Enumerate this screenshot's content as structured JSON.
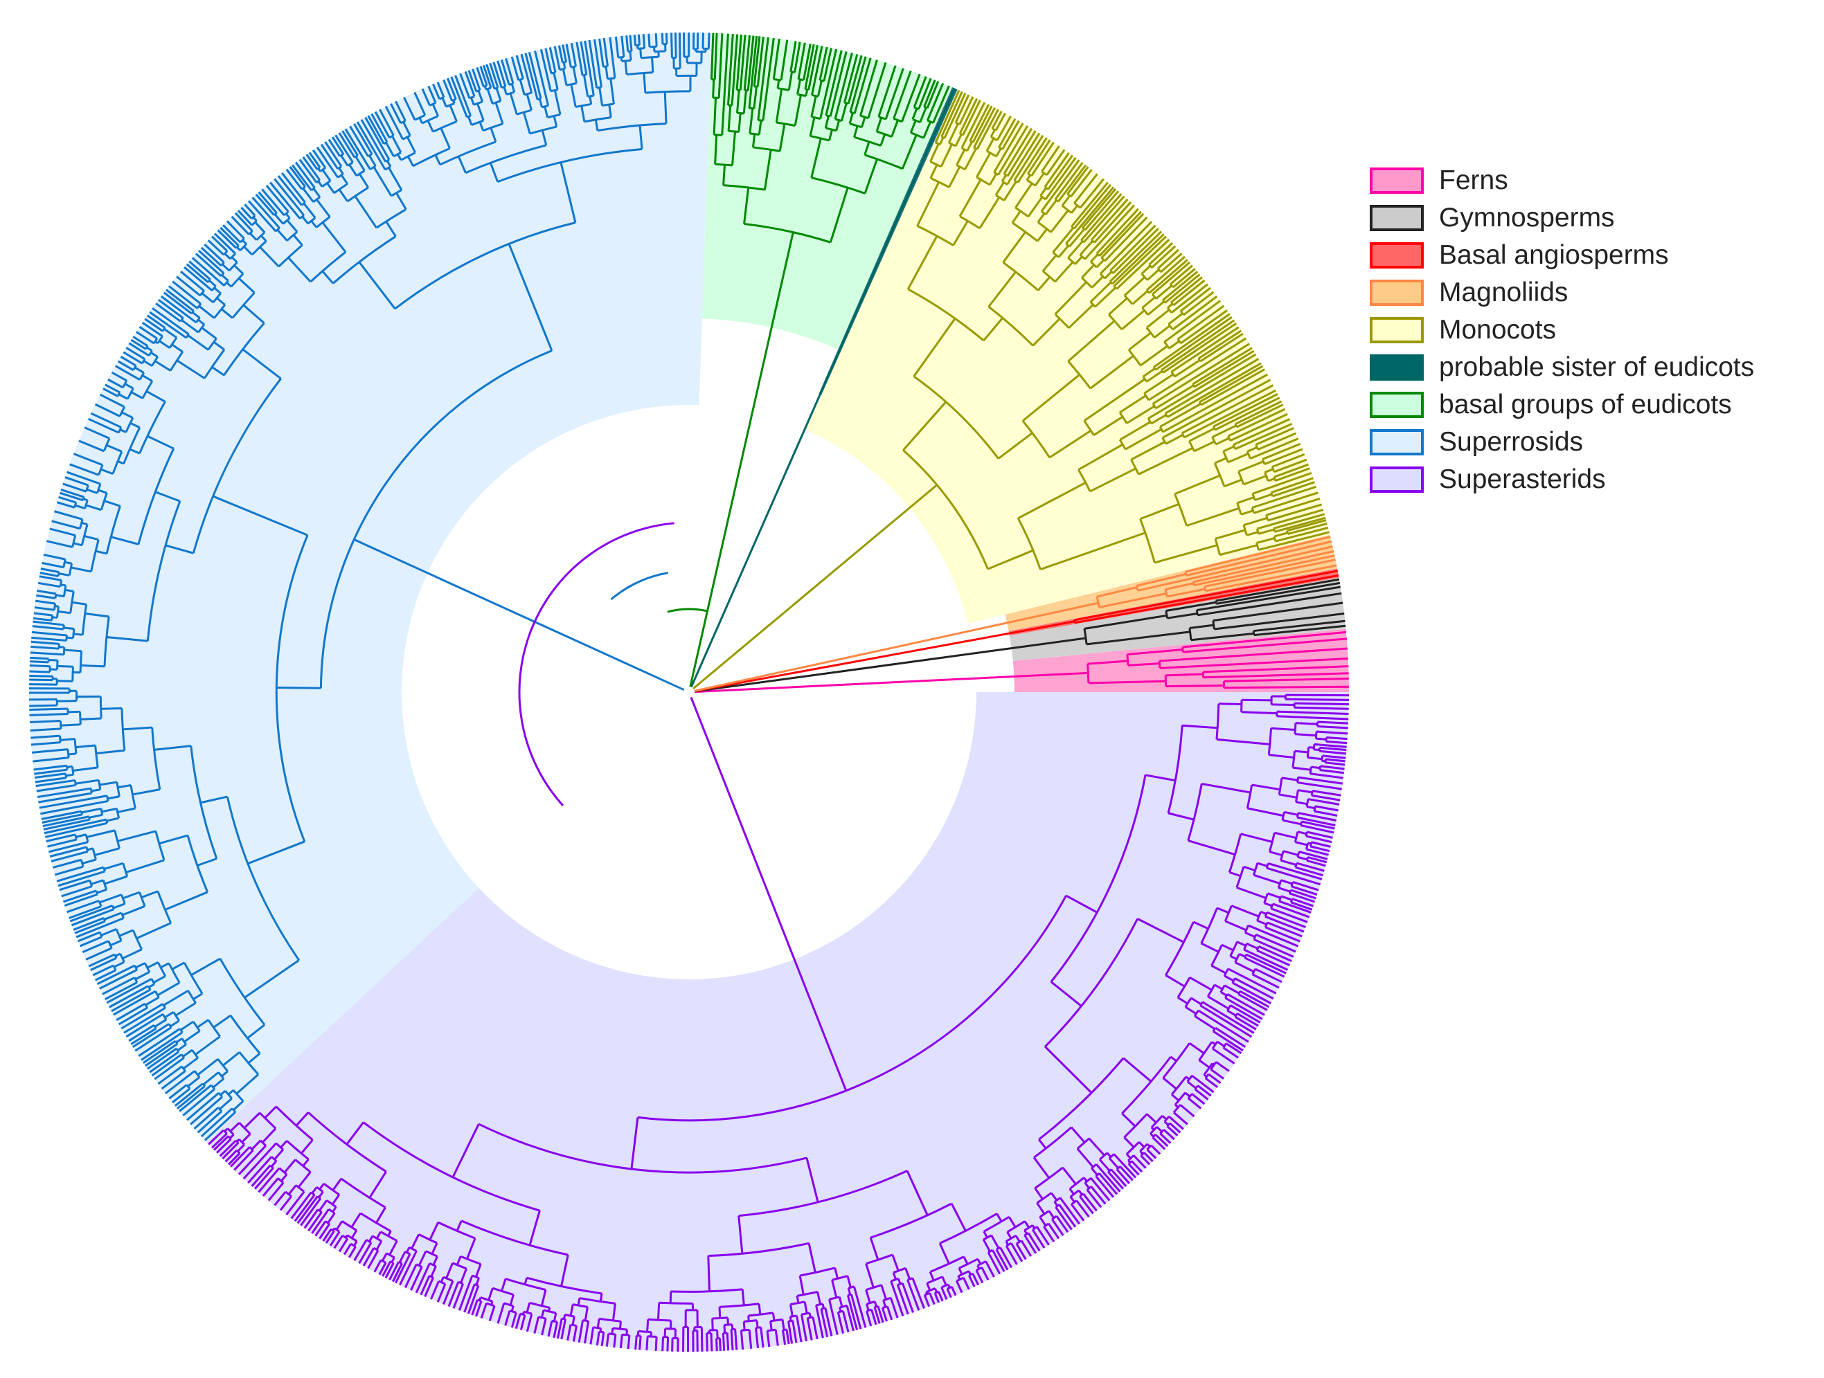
{
  "diagram": {
    "type": "circular-phylogenetic-tree",
    "clades": [
      {
        "id": "ferns",
        "label": "Ferns",
        "fill": "#ff99cc",
        "stroke": "#ff00aa",
        "start_deg": -5.5,
        "end_deg": 0,
        "inner": "outer"
      },
      {
        "id": "gymnosperms",
        "label": "Gymnosperms",
        "fill": "#cccccc",
        "stroke": "#222222",
        "start_deg": -10,
        "end_deg": -5.5,
        "inner": "outer"
      },
      {
        "id": "basal-angiosperms",
        "label": "Basal angiosperms",
        "fill": "#ff6666",
        "stroke": "#ff0000",
        "start_deg": -10.8,
        "end_deg": -10,
        "inner": "outer"
      },
      {
        "id": "magnoliids",
        "label": "Magnoliids",
        "fill": "#ffcc88",
        "stroke": "#ff8844",
        "start_deg": -13.8,
        "end_deg": -10.8,
        "inner": "outer"
      },
      {
        "id": "monocots",
        "label": "Monocots",
        "fill": "#ffffcc",
        "stroke": "#999900",
        "start_deg": -66,
        "end_deg": -13.8,
        "inner": "inner"
      },
      {
        "id": "probable-sister",
        "label": "probable sister of eudicots",
        "fill": "#006666",
        "stroke": "#006666",
        "start_deg": -66.5,
        "end_deg": -66,
        "inner": "outer"
      },
      {
        "id": "basal-eudicots",
        "label": "basal groups of eudicots",
        "fill": "#ccffdd",
        "stroke": "#008800",
        "start_deg": -88,
        "end_deg": -66.5,
        "inner": "mid"
      },
      {
        "id": "superrosids",
        "label": "Superrosids",
        "fill": "#ddeeff",
        "stroke": "#1177cc",
        "start_deg": -223,
        "end_deg": -88,
        "inner": "inner"
      },
      {
        "id": "superasterids",
        "label": "Superasterids",
        "fill": "#ddddff",
        "stroke": "#8800ee",
        "start_deg": -360,
        "end_deg": -223,
        "inner": "inner"
      }
    ]
  },
  "legend": {
    "items": [
      {
        "label": "Ferns",
        "fill": "#ff99cc",
        "stroke": "#ff00aa"
      },
      {
        "label": "Gymnosperms",
        "fill": "#cccccc",
        "stroke": "#222222"
      },
      {
        "label": "Basal angiosperms",
        "fill": "#ff6666",
        "stroke": "#ff0000"
      },
      {
        "label": "Magnoliids",
        "fill": "#ffcc88",
        "stroke": "#ff8844"
      },
      {
        "label": "Monocots",
        "fill": "#ffffcc",
        "stroke": "#999900"
      },
      {
        "label": "probable sister of eudicots",
        "fill": "#006666",
        "stroke": "#006666"
      },
      {
        "label": "basal groups of eudicots",
        "fill": "#ccffdd",
        "stroke": "#008800"
      },
      {
        "label": "Superrosids",
        "fill": "#ddeeff",
        "stroke": "#1177cc"
      },
      {
        "label": "Superasterids",
        "fill": "#ddddff",
        "stroke": "#8800ee"
      }
    ]
  }
}
